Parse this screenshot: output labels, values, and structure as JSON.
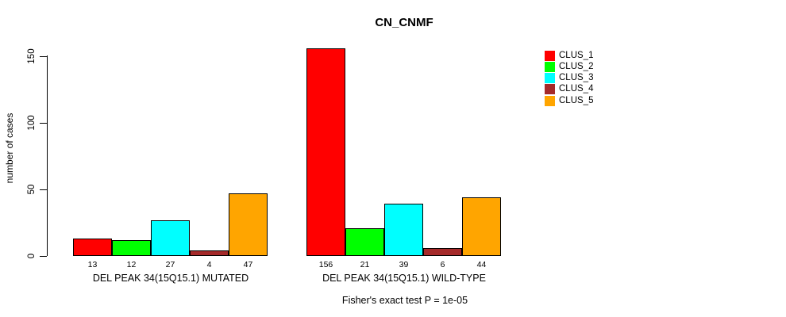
{
  "footer": "Fisher's exact test P = 1e-05",
  "legend": {
    "items": [
      {
        "label": "CLUS_1",
        "color": "#FF0000"
      },
      {
        "label": "CLUS_2",
        "color": "#00FF00"
      },
      {
        "label": "CLUS_3",
        "color": "#00FFFF"
      },
      {
        "label": "CLUS_4",
        "color": "#A52A2A"
      },
      {
        "label": "CLUS_5",
        "color": "#FFA500"
      }
    ],
    "position": "right"
  },
  "chart_data": {
    "type": "bar",
    "title": "CN_CNMF",
    "ylabel": "number of cases",
    "xlabel": "",
    "categories": [
      "DEL PEAK 34(15Q15.1) MUTATED",
      "DEL PEAK 34(15Q15.1) WILD-TYPE"
    ],
    "series": [
      {
        "name": "CLUS_1",
        "color": "#FF0000",
        "values": [
          13,
          156
        ]
      },
      {
        "name": "CLUS_2",
        "color": "#00FF00",
        "values": [
          12,
          21
        ]
      },
      {
        "name": "CLUS_3",
        "color": "#00FFFF",
        "values": [
          27,
          39
        ]
      },
      {
        "name": "CLUS_4",
        "color": "#A52A2A",
        "values": [
          4,
          6
        ]
      },
      {
        "name": "CLUS_5",
        "color": "#FFA500",
        "values": [
          47,
          44
        ]
      }
    ],
    "yticks": [
      0,
      50,
      100,
      150
    ],
    "ylim": [
      0,
      150
    ],
    "grid": "off",
    "bar_value_labels": true,
    "legend_position": "right",
    "annotation": "Fisher's exact test P = 1e-05"
  }
}
